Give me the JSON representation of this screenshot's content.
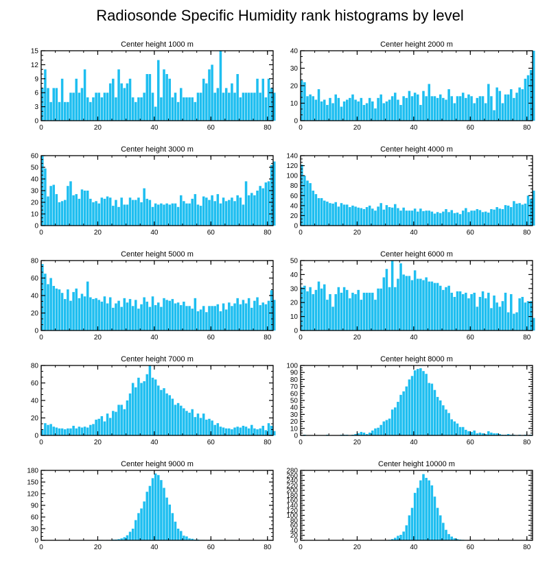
{
  "page_title": "Radiosonde Specific Humidity rank histograms by level",
  "colors": {
    "bar": "#1EBEF0",
    "bar_edge": "#ffffff",
    "axis": "#000000"
  },
  "chart_data": [
    {
      "type": "bar",
      "title": "Center height 1000 m",
      "xlim": [
        0,
        82
      ],
      "ylim": [
        0,
        15
      ],
      "yticks": [
        0,
        3,
        6,
        9,
        12,
        15
      ],
      "xticks": [
        0,
        20,
        40,
        60,
        80
      ],
      "values": [
        7,
        11,
        7,
        4,
        7,
        7,
        4,
        9,
        4,
        4,
        6,
        6,
        9,
        6,
        7,
        11,
        5,
        4,
        5,
        6,
        6,
        5,
        6,
        6,
        8,
        9,
        5,
        11,
        8,
        7,
        8,
        9,
        5,
        4,
        5,
        5,
        6,
        10,
        10,
        6,
        3,
        13,
        5,
        11,
        10,
        9,
        5,
        6,
        4,
        7,
        5,
        5,
        5,
        5,
        4,
        6,
        6,
        9,
        8,
        11,
        12,
        6,
        7,
        15,
        6,
        7,
        6,
        8,
        6,
        10,
        5,
        6,
        6,
        6,
        6,
        6,
        9,
        6,
        9,
        5,
        9,
        7,
        6
      ]
    },
    {
      "type": "bar",
      "title": "Center height 2000 m",
      "xlim": [
        0,
        82
      ],
      "ylim": [
        0,
        40
      ],
      "yticks": [
        0,
        10,
        20,
        30,
        40
      ],
      "xticks": [
        0,
        20,
        40,
        60,
        80
      ],
      "values": [
        23,
        22,
        14,
        15,
        14,
        12,
        18,
        11,
        12,
        9,
        13,
        10,
        15,
        13,
        8,
        11,
        12,
        13,
        15,
        12,
        11,
        13,
        9,
        10,
        13,
        11,
        7,
        13,
        15,
        10,
        11,
        12,
        14,
        16,
        12,
        9,
        14,
        13,
        17,
        14,
        16,
        15,
        9,
        17,
        14,
        21,
        14,
        14,
        13,
        15,
        13,
        12,
        18,
        14,
        10,
        14,
        14,
        16,
        13,
        15,
        14,
        10,
        13,
        14,
        14,
        10,
        21,
        14,
        6,
        19,
        17,
        10,
        15,
        15,
        18,
        13,
        16,
        19,
        18,
        24,
        26,
        29,
        40
      ]
    },
    {
      "type": "bar",
      "title": "Center height 3000 m",
      "xlim": [
        0,
        82
      ],
      "ylim": [
        0,
        60
      ],
      "yticks": [
        0,
        10,
        20,
        30,
        40,
        50,
        60
      ],
      "xticks": [
        0,
        20,
        40,
        60,
        80
      ],
      "values": [
        60,
        49,
        25,
        34,
        35,
        27,
        20,
        21,
        22,
        34,
        38,
        26,
        27,
        23,
        31,
        30,
        30,
        23,
        20,
        21,
        19,
        24,
        23,
        25,
        24,
        17,
        22,
        16,
        24,
        18,
        18,
        24,
        22,
        22,
        24,
        20,
        32,
        23,
        22,
        16,
        19,
        18,
        19,
        18,
        19,
        18,
        19,
        19,
        16,
        26,
        21,
        19,
        19,
        23,
        27,
        18,
        17,
        25,
        24,
        22,
        26,
        21,
        27,
        19,
        24,
        21,
        22,
        24,
        21,
        26,
        24,
        18,
        38,
        26,
        28,
        26,
        30,
        34,
        32,
        37,
        38,
        52,
        55
      ]
    },
    {
      "type": "bar",
      "title": "Center height 4000 m",
      "xlim": [
        0,
        82
      ],
      "ylim": [
        0,
        140
      ],
      "yticks": [
        0,
        20,
        40,
        60,
        80,
        100,
        120,
        140
      ],
      "xticks": [
        0,
        20,
        40,
        60,
        80
      ],
      "values": [
        122,
        100,
        90,
        85,
        70,
        63,
        55,
        55,
        50,
        48,
        45,
        44,
        47,
        38,
        45,
        42,
        42,
        37,
        40,
        38,
        36,
        35,
        33,
        37,
        40,
        34,
        30,
        38,
        45,
        32,
        41,
        37,
        36,
        43,
        35,
        30,
        36,
        30,
        30,
        30,
        34,
        28,
        34,
        29,
        30,
        30,
        28,
        24,
        27,
        25,
        28,
        33,
        27,
        31,
        25,
        26,
        23,
        30,
        35,
        27,
        30,
        30,
        33,
        31,
        27,
        28,
        26,
        33,
        32,
        37,
        34,
        33,
        41,
        40,
        37,
        49,
        44,
        45,
        42,
        44,
        60,
        53,
        70
      ]
    },
    {
      "type": "bar",
      "title": "Center height 5000 m",
      "xlim": [
        0,
        82
      ],
      "ylim": [
        0,
        80
      ],
      "yticks": [
        0,
        20,
        40,
        60,
        80
      ],
      "xticks": [
        0,
        20,
        40,
        60,
        80
      ],
      "values": [
        76,
        65,
        53,
        60,
        51,
        48,
        47,
        43,
        36,
        47,
        34,
        44,
        48,
        37,
        42,
        39,
        56,
        38,
        36,
        37,
        35,
        33,
        39,
        31,
        38,
        26,
        31,
        34,
        27,
        37,
        32,
        36,
        28,
        35,
        25,
        30,
        38,
        33,
        27,
        39,
        29,
        32,
        27,
        37,
        35,
        34,
        36,
        31,
        32,
        29,
        33,
        28,
        28,
        25,
        37,
        22,
        24,
        28,
        21,
        28,
        28,
        28,
        30,
        22,
        31,
        24,
        32,
        28,
        31,
        37,
        30,
        35,
        31,
        37,
        26,
        34,
        38,
        29,
        32,
        30,
        34,
        46,
        35
      ]
    },
    {
      "type": "bar",
      "title": "Center height 6000 m",
      "xlim": [
        0,
        82
      ],
      "ylim": [
        0,
        50
      ],
      "yticks": [
        0,
        10,
        20,
        30,
        40,
        50
      ],
      "xticks": [
        0,
        20,
        40,
        60,
        80
      ],
      "values": [
        31,
        32,
        28,
        31,
        26,
        29,
        35,
        30,
        33,
        22,
        26,
        17,
        26,
        31,
        27,
        31,
        29,
        23,
        27,
        26,
        29,
        22,
        27,
        27,
        27,
        27,
        22,
        30,
        30,
        38,
        44,
        31,
        50,
        31,
        37,
        48,
        40,
        39,
        39,
        36,
        43,
        37,
        37,
        36,
        38,
        35,
        35,
        34,
        34,
        32,
        29,
        31,
        32,
        27,
        24,
        28,
        28,
        26,
        27,
        23,
        26,
        27,
        17,
        24,
        28,
        23,
        27,
        16,
        25,
        20,
        17,
        21,
        27,
        13,
        26,
        12,
        13,
        23,
        24,
        20,
        21,
        21,
        9
      ]
    },
    {
      "type": "bar",
      "title": "Center height 7000 m",
      "xlim": [
        0,
        82
      ],
      "ylim": [
        0,
        80
      ],
      "yticks": [
        0,
        20,
        40,
        60,
        80
      ],
      "xticks": [
        0,
        20,
        40,
        60,
        80
      ],
      "values": [
        7,
        14,
        12,
        13,
        10,
        9,
        8,
        8,
        7,
        8,
        8,
        11,
        8,
        10,
        9,
        10,
        9,
        12,
        13,
        18,
        19,
        22,
        16,
        25,
        20,
        28,
        27,
        35,
        35,
        30,
        40,
        48,
        60,
        55,
        66,
        60,
        62,
        70,
        80,
        66,
        64,
        57,
        52,
        54,
        48,
        46,
        42,
        35,
        37,
        34,
        31,
        28,
        26,
        30,
        21,
        25,
        20,
        25,
        18,
        19,
        17,
        12,
        14,
        10,
        9,
        8,
        8,
        7,
        9,
        10,
        9,
        11,
        10,
        8,
        12,
        8,
        7,
        8,
        11,
        6,
        14,
        11,
        5
      ]
    },
    {
      "type": "bar",
      "title": "Center height 8000 m",
      "xlim": [
        0,
        82
      ],
      "ylim": [
        0,
        100
      ],
      "yticks": [
        0,
        10,
        20,
        30,
        40,
        50,
        60,
        70,
        80,
        90,
        100
      ],
      "xticks": [
        0,
        20,
        40,
        60,
        80
      ],
      "values": [
        0,
        1,
        0,
        0,
        0,
        0,
        0,
        0,
        0,
        1,
        0,
        0,
        0,
        0,
        1,
        1,
        1,
        0,
        1,
        2,
        3,
        5,
        4,
        2,
        4,
        7,
        10,
        11,
        15,
        20,
        22,
        24,
        37,
        40,
        48,
        58,
        63,
        70,
        80,
        85,
        93,
        95,
        96,
        92,
        88,
        75,
        74,
        65,
        55,
        50,
        43,
        37,
        32,
        23,
        20,
        17,
        12,
        12,
        8,
        6,
        5,
        7,
        3,
        4,
        3,
        2,
        6,
        4,
        3,
        3,
        2,
        1,
        1,
        2,
        1,
        1,
        0,
        1,
        0,
        1,
        0,
        1,
        0
      ]
    },
    {
      "type": "bar",
      "title": "Center height 9000 m",
      "xlim": [
        0,
        82
      ],
      "ylim": [
        0,
        180
      ],
      "yticks": [
        0,
        30,
        60,
        90,
        120,
        150,
        180
      ],
      "xticks": [
        0,
        20,
        40,
        60,
        80
      ],
      "values": [
        0,
        0,
        0,
        0,
        0,
        0,
        0,
        0,
        0,
        0,
        0,
        0,
        0,
        0,
        0,
        0,
        0,
        0,
        0,
        0,
        1,
        1,
        0,
        1,
        1,
        2,
        2,
        3,
        5,
        8,
        13,
        22,
        30,
        52,
        70,
        82,
        100,
        125,
        140,
        160,
        172,
        168,
        155,
        135,
        110,
        92,
        70,
        48,
        30,
        24,
        12,
        10,
        5,
        4,
        2,
        2,
        1,
        1,
        0,
        1,
        0,
        0,
        1,
        1,
        0,
        0,
        0,
        1,
        0,
        0,
        0,
        0,
        0,
        0,
        0,
        0,
        0,
        0,
        0,
        0,
        0,
        0,
        0
      ]
    },
    {
      "type": "bar",
      "title": "Center height 10000 m",
      "xlim": [
        0,
        82
      ],
      "ylim": [
        0,
        280
      ],
      "yticks": [
        0,
        20,
        40,
        60,
        80,
        100,
        120,
        140,
        160,
        180,
        200,
        220,
        240,
        260,
        280
      ],
      "xticks": [
        0,
        20,
        40,
        60,
        80
      ],
      "values": [
        0,
        0,
        0,
        0,
        0,
        0,
        0,
        0,
        0,
        0,
        0,
        0,
        0,
        0,
        0,
        0,
        0,
        0,
        0,
        0,
        0,
        0,
        0,
        0,
        0,
        0,
        0,
        0,
        0,
        1,
        1,
        2,
        5,
        10,
        18,
        22,
        35,
        60,
        100,
        130,
        190,
        210,
        240,
        265,
        250,
        240,
        220,
        175,
        130,
        100,
        70,
        42,
        25,
        15,
        8,
        5,
        3,
        2,
        1,
        1,
        0,
        0,
        1,
        0,
        0,
        0,
        0,
        0,
        0,
        0,
        0,
        0,
        0,
        0,
        0,
        0,
        0,
        0,
        0,
        0,
        0,
        0,
        0
      ]
    }
  ]
}
